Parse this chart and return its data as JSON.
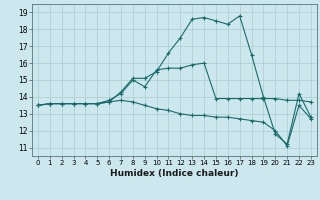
{
  "xlabel": "Humidex (Indice chaleur)",
  "background_color": "#cce8ee",
  "grid_color": "#aacccc",
  "line_color": "#1a6b6b",
  "xlim": [
    -0.5,
    23.5
  ],
  "ylim": [
    10.5,
    19.5
  ],
  "yticks": [
    11,
    12,
    13,
    14,
    15,
    16,
    17,
    18,
    19
  ],
  "xticks": [
    0,
    1,
    2,
    3,
    4,
    5,
    6,
    7,
    8,
    9,
    10,
    11,
    12,
    13,
    14,
    15,
    16,
    17,
    18,
    19,
    20,
    21,
    22,
    23
  ],
  "lines": [
    [
      13.5,
      13.6,
      13.6,
      13.6,
      13.6,
      13.6,
      13.7,
      14.3,
      15.1,
      15.1,
      15.5,
      16.6,
      17.5,
      18.6,
      18.7,
      18.5,
      18.3,
      18.8,
      16.5,
      14.0,
      11.8,
      11.2,
      14.2,
      12.8
    ],
    [
      13.5,
      13.6,
      13.6,
      13.6,
      13.6,
      13.6,
      13.8,
      14.2,
      15.0,
      14.6,
      15.6,
      15.7,
      15.7,
      15.9,
      16.0,
      13.9,
      13.9,
      13.9,
      13.9,
      13.9,
      13.9,
      13.8,
      13.8,
      13.7
    ],
    [
      13.5,
      13.6,
      13.6,
      13.6,
      13.6,
      13.6,
      13.7,
      13.8,
      13.7,
      13.5,
      13.3,
      13.2,
      13.0,
      12.9,
      12.9,
      12.8,
      12.8,
      12.7,
      12.6,
      12.5,
      12.0,
      11.1,
      13.5,
      12.7
    ]
  ]
}
